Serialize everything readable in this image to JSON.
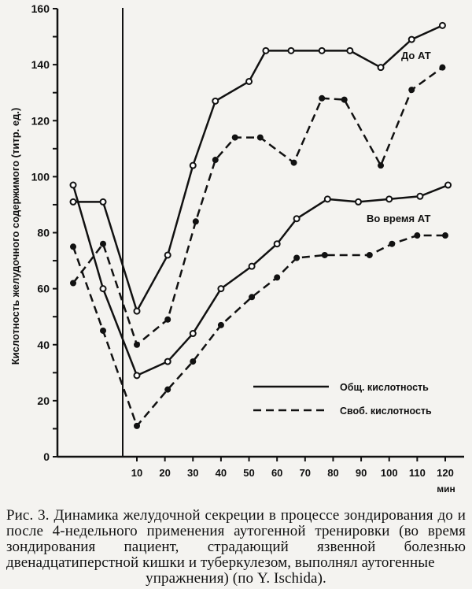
{
  "chart_data": {
    "type": "line",
    "title": "",
    "ylabel": "Кислотность желудочного содержимого (титр. ед.)",
    "xlabel": "мин",
    "ylim": [
      0,
      160
    ],
    "y_ticks": [
      0,
      20,
      40,
      60,
      80,
      100,
      120,
      140,
      160
    ],
    "y_minor_step": 10,
    "x_ticks": [
      10,
      20,
      30,
      40,
      50,
      60,
      70,
      80,
      90,
      100,
      110,
      120
    ],
    "grid": false,
    "baseline_marker": "vertical line before 10 min separating two pre-session measurements",
    "pre_points_x_labels": [
      "pre-1",
      "pre-2"
    ],
    "series": [
      {
        "name": "До АТ — Общ. кислотность",
        "group": "До АТ",
        "style": "solid",
        "marker": "open-circle",
        "x": [
          "pre-1",
          "pre-2",
          10,
          21,
          30,
          38,
          50,
          56,
          65,
          76,
          86,
          97,
          108,
          119
        ],
        "values": [
          91,
          91,
          52,
          72,
          104,
          127,
          134,
          145,
          145,
          145,
          145,
          139,
          149,
          154
        ]
      },
      {
        "name": "До АТ — Своб. кислотность",
        "group": "До АТ",
        "style": "dashed",
        "marker": "filled-circle",
        "x": [
          "pre-1",
          "pre-2",
          10,
          21,
          31,
          38,
          45,
          54,
          66,
          76,
          84,
          97,
          108,
          119
        ],
        "values": [
          62,
          76,
          40,
          49,
          84,
          106,
          114,
          114,
          105,
          128,
          127.5,
          104,
          131,
          139
        ]
      },
      {
        "name": "Во время АТ — Общ. кислотность",
        "group": "Во время АТ",
        "style": "solid",
        "marker": "open-circle",
        "x": [
          "pre-1",
          "pre-2",
          10,
          21,
          30,
          40,
          51,
          60,
          67,
          78,
          89,
          100,
          111,
          121
        ],
        "values": [
          97,
          60,
          29,
          34,
          44,
          60,
          68,
          76,
          85,
          92,
          91,
          92,
          93,
          97
        ]
      },
      {
        "name": "Во время АТ — Своб. кислотность",
        "group": "Во время АТ",
        "style": "dashed",
        "marker": "filled-circle",
        "x": [
          "pre-1",
          "pre-2",
          10,
          21,
          30,
          40,
          51,
          60,
          67,
          77,
          93,
          101,
          110,
          120
        ],
        "values": [
          75,
          45,
          11,
          24,
          34,
          47,
          57,
          64,
          71,
          72,
          72,
          76,
          79,
          79
        ]
      }
    ],
    "annotations": [
      "До АТ",
      "Во время АТ"
    ],
    "legend": {
      "position": "lower right",
      "entries": [
        {
          "label": "Общ. кислотность",
          "style": "solid"
        },
        {
          "label": "Своб. кислотность",
          "style": "dashed"
        }
      ]
    }
  },
  "axis": {
    "ylabel": "Кислотность желудочного содержимого (титр. ед.)",
    "xunit": "мин"
  },
  "labels": {
    "before": "До АТ",
    "during": "Во время АТ"
  },
  "legend": {
    "total": "Общ. кислотность",
    "free": "Своб. кислотность"
  },
  "caption": {
    "body": "Рис. 3. Динамика желудочной секреции в процессе зондирования до и после 4-недельного применения аутогенной тренировки (во время зондирования пациент, страдающий язвенной болезнью двенадцатиперстной кишки и туберкулезом, выполнял аутогенные",
    "last_line": "упражнения) (по Y. Ischida)."
  }
}
